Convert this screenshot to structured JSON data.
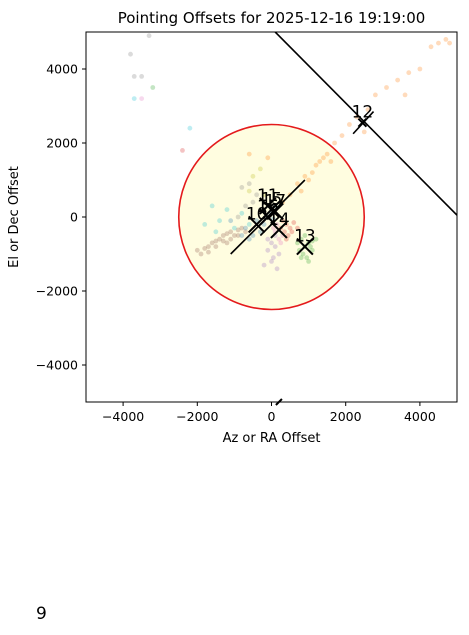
{
  "chart_data": {
    "type": "scatter",
    "title": "Pointing Offsets for 2025-12-16 19:19:00",
    "xlabel": "Az or RA Offset",
    "ylabel": "El or Dec Offset",
    "xlim": [
      -5000,
      5000
    ],
    "ylim": [
      -5000,
      5000
    ],
    "xticks": [
      -4000,
      -2000,
      0,
      2000,
      4000
    ],
    "yticks": [
      -4000,
      -2000,
      0,
      2000,
      4000
    ],
    "xtick_labels": [
      "−4000",
      "−2000",
      "0",
      "2000",
      "4000"
    ],
    "ytick_labels": [
      "−4000",
      "−2000",
      "0",
      "2000",
      "4000"
    ],
    "grid": false,
    "circle": {
      "center": [
        0,
        0
      ],
      "radius": 2500,
      "edge_color": "#e41a1c",
      "fill_color": "#fffde0"
    },
    "reference_line": {
      "x": [
        100,
        5000
      ],
      "y": [
        5000,
        50
      ]
    },
    "series": [
      {
        "color": "#ff7f0e",
        "points": [
          [
            4500,
            4700
          ],
          [
            4700,
            4800
          ],
          [
            4800,
            4700
          ],
          [
            4300,
            4600
          ],
          [
            4000,
            4000
          ],
          [
            3700,
            3900
          ],
          [
            3400,
            3700
          ],
          [
            3100,
            3500
          ],
          [
            2800,
            3300
          ],
          [
            3600,
            3300
          ],
          [
            2600,
            2900
          ],
          [
            2300,
            2700
          ],
          [
            2100,
            2500
          ],
          [
            2500,
            2300
          ],
          [
            1900,
            2200
          ],
          [
            1700,
            2000
          ],
          [
            1500,
            1700
          ],
          [
            1300,
            1500
          ],
          [
            1600,
            1500
          ],
          [
            1100,
            1200
          ],
          [
            1200,
            1400
          ],
          [
            900,
            1100
          ],
          [
            700,
            900
          ],
          [
            800,
            700
          ],
          [
            500,
            600
          ],
          [
            300,
            400
          ],
          [
            1400,
            1600
          ],
          [
            1000,
            1000
          ],
          [
            -600,
            1700
          ],
          [
            -100,
            1600
          ]
        ]
      },
      {
        "color": "#8c564b",
        "points": [
          [
            -2000,
            -900
          ],
          [
            -1900,
            -1000
          ],
          [
            -1800,
            -850
          ],
          [
            -1700,
            -800
          ],
          [
            -1600,
            -700
          ],
          [
            -1500,
            -650
          ],
          [
            -1400,
            -600
          ],
          [
            -1300,
            -500
          ],
          [
            -1200,
            -450
          ],
          [
            -1100,
            -400
          ],
          [
            -1000,
            -500
          ],
          [
            -900,
            -350
          ],
          [
            -800,
            -300
          ],
          [
            -1700,
            -950
          ],
          [
            -1500,
            -800
          ],
          [
            -1300,
            -650
          ],
          [
            -1100,
            -600
          ],
          [
            -900,
            -500
          ],
          [
            -700,
            -400
          ],
          [
            -1200,
            -700
          ]
        ]
      },
      {
        "color": "#2ca02c",
        "points": [
          [
            700,
            -700
          ],
          [
            800,
            -600
          ],
          [
            900,
            -800
          ],
          [
            1000,
            -700
          ],
          [
            1100,
            -900
          ],
          [
            850,
            -1000
          ],
          [
            950,
            -1100
          ],
          [
            1050,
            -800
          ],
          [
            750,
            -900
          ],
          [
            1200,
            -600
          ],
          [
            1000,
            -1200
          ],
          [
            900,
            -500
          ],
          [
            1100,
            -650
          ],
          [
            800,
            -1100
          ],
          [
            -3200,
            3500
          ]
        ]
      },
      {
        "color": "#d62728",
        "points": [
          [
            300,
            -100
          ],
          [
            400,
            -200
          ],
          [
            500,
            -300
          ],
          [
            350,
            -400
          ],
          [
            600,
            -150
          ],
          [
            450,
            -500
          ],
          [
            250,
            -300
          ],
          [
            550,
            -400
          ],
          [
            700,
            -300
          ],
          [
            400,
            -600
          ],
          [
            -2400,
            1800
          ]
        ]
      },
      {
        "color": "#9467bd",
        "points": [
          [
            0,
            -700
          ],
          [
            100,
            -800
          ],
          [
            -100,
            -900
          ],
          [
            200,
            -1000
          ],
          [
            -200,
            -1300
          ],
          [
            0,
            -1200
          ],
          [
            150,
            -1400
          ],
          [
            100,
            -500
          ],
          [
            -100,
            -600
          ],
          [
            50,
            -1100
          ]
        ]
      },
      {
        "color": "#e377c2",
        "points": [
          [
            100,
            -400
          ],
          [
            200,
            -600
          ],
          [
            300,
            -500
          ],
          [
            50,
            -300
          ],
          [
            250,
            -700
          ],
          [
            -3500,
            3200
          ],
          [
            150,
            -200
          ]
        ]
      },
      {
        "color": "#7f7f7f",
        "points": [
          [
            -3800,
            4400
          ],
          [
            -3700,
            3800
          ],
          [
            -3500,
            3800
          ],
          [
            -3300,
            4900
          ],
          [
            -800,
            800
          ],
          [
            -600,
            900
          ],
          [
            -500,
            400
          ],
          [
            -400,
            600
          ],
          [
            -700,
            300
          ],
          [
            -300,
            200
          ],
          [
            -900,
            0
          ]
        ]
      },
      {
        "color": "#17becf",
        "points": [
          [
            -3700,
            3200
          ],
          [
            -2200,
            2400
          ],
          [
            -1800,
            -200
          ],
          [
            -1600,
            300
          ],
          [
            -1400,
            -100
          ],
          [
            -1200,
            200
          ],
          [
            -1000,
            -300
          ],
          [
            -800,
            100
          ],
          [
            -1500,
            -400
          ],
          [
            -600,
            -200
          ]
        ]
      },
      {
        "color": "#1f77b4",
        "points": [
          [
            -700,
            -300
          ],
          [
            -500,
            -500
          ],
          [
            -400,
            -100
          ],
          [
            -300,
            -400
          ],
          [
            -600,
            -600
          ],
          [
            -200,
            -200
          ],
          [
            -800,
            -500
          ],
          [
            0,
            100
          ],
          [
            100,
            300
          ],
          [
            -100,
            0
          ],
          [
            50,
            -50
          ],
          [
            -1100,
            -100
          ]
        ]
      },
      {
        "color": "#bcbd22",
        "points": [
          [
            -500,
            1100
          ],
          [
            -300,
            1300
          ],
          [
            -600,
            700
          ],
          [
            -200,
            600
          ]
        ]
      }
    ],
    "crosses": [
      {
        "label": "10",
        "x": -400,
        "y": -200
      },
      {
        "label": "11",
        "x": -100,
        "y": 300
      },
      {
        "label": "12",
        "x": 2450,
        "y": 2550
      },
      {
        "label": "13",
        "x": 900,
        "y": -800
      },
      {
        "label": "14",
        "x": 200,
        "y": -350
      },
      {
        "label": "15",
        "x": 0,
        "y": 200
      },
      {
        "label": "16",
        "x": -100,
        "y": 0
      },
      {
        "label": "17",
        "x": 100,
        "y": 150
      }
    ],
    "diagonal_lines": [
      {
        "x": [
          -1100,
          900
        ],
        "y": [
          -1000,
          1000
        ]
      },
      {
        "x": [
          2200,
          2750
        ],
        "y": [
          2250,
          2850
        ]
      },
      {
        "x": [
          700,
          1100
        ],
        "y": [
          -1000,
          -600
        ]
      },
      {
        "x": [
          -300,
          200
        ],
        "y": [
          -500,
          0
        ]
      }
    ],
    "clipped_markers": [
      {
        "x": 200,
        "y": -5000
      }
    ]
  },
  "footer": {
    "number": "9"
  }
}
